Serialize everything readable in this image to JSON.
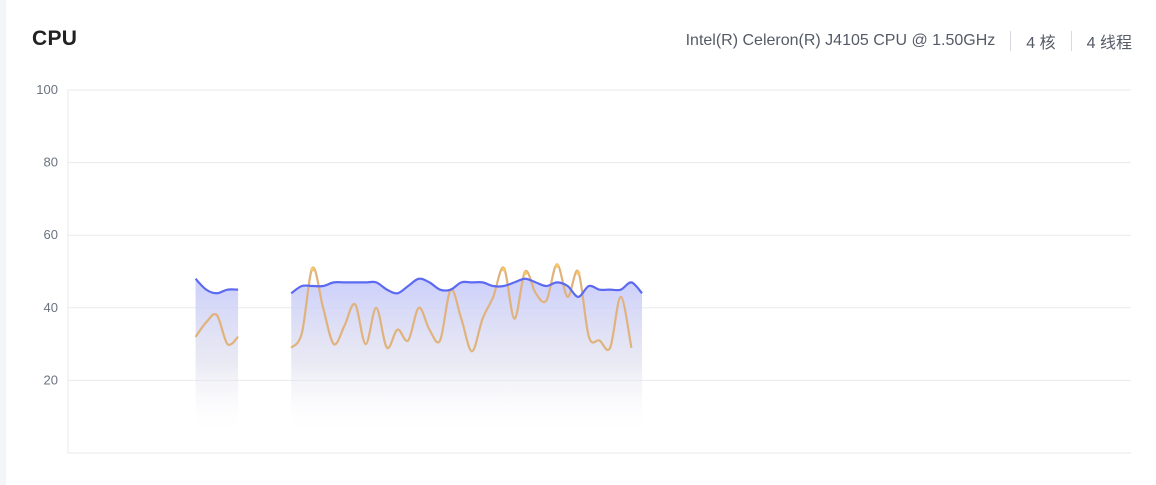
{
  "header": {
    "title": "CPU",
    "model": "Intel(R) Celeron(R) J4105 CPU @ 1.50GHz",
    "cores": "4 核",
    "threads": "4 线程"
  },
  "colors": {
    "series_total": "#5b6af0",
    "series_other": "#e0b27c",
    "series_other_peak": "#f8c66a",
    "grid": "#e8eaee"
  },
  "chart_data": {
    "type": "area",
    "ylim": [
      0,
      100
    ],
    "y_ticks": [
      20,
      40,
      60,
      80,
      100
    ],
    "grid": true,
    "x": [
      0,
      1,
      2,
      3,
      4,
      5,
      6,
      7,
      8,
      9,
      10,
      11,
      12,
      13,
      14,
      15,
      16,
      17,
      18,
      19,
      20,
      21,
      22,
      23,
      24,
      25,
      26,
      27,
      28,
      29,
      30,
      31,
      32,
      33,
      34,
      35,
      36,
      37,
      38,
      39,
      40,
      41,
      42,
      43,
      44,
      45,
      46,
      47,
      48,
      49,
      50,
      51,
      52,
      53,
      54,
      55,
      56,
      57,
      58,
      59,
      60,
      61,
      62,
      63,
      64,
      65,
      66,
      67,
      68,
      69,
      70,
      71,
      72,
      73,
      74,
      75,
      76,
      77,
      78,
      79,
      80,
      81,
      82,
      83,
      84,
      85,
      86,
      87,
      88,
      89,
      90,
      91,
      92,
      93,
      94,
      95,
      96,
      97,
      98,
      99,
      100
    ],
    "series": [
      {
        "values": [
          null,
          null,
          null,
          null,
          null,
          null,
          null,
          null,
          null,
          null,
          null,
          null,
          48,
          45,
          44,
          45,
          45,
          null,
          null,
          null,
          null,
          44,
          46,
          46,
          46,
          47,
          47,
          47,
          47,
          47,
          45,
          44,
          46,
          48,
          47,
          45,
          45,
          47,
          47,
          47,
          46,
          46,
          47,
          48,
          47,
          46,
          47,
          46,
          43,
          46,
          45,
          45,
          45,
          47,
          44,
          null,
          null,
          null,
          null,
          null,
          null,
          null,
          null,
          null,
          null,
          null,
          null,
          null,
          null,
          null,
          null,
          null,
          null,
          null,
          null,
          null,
          null,
          null,
          null,
          null,
          null,
          null,
          null,
          null,
          null,
          null,
          null,
          null,
          null,
          null,
          null,
          null,
          null,
          null,
          null,
          null,
          null,
          null,
          null,
          null,
          null
        ]
      },
      {
        "values": [
          null,
          null,
          null,
          null,
          null,
          null,
          null,
          null,
          null,
          null,
          null,
          null,
          32,
          36,
          38,
          30,
          32,
          null,
          null,
          null,
          null,
          29,
          33,
          51,
          40,
          30,
          35,
          41,
          30,
          40,
          29,
          34,
          31,
          40,
          34,
          31,
          45,
          37,
          28,
          37,
          43,
          51,
          37,
          50,
          44,
          42,
          52,
          43,
          50,
          32,
          31,
          29,
          43,
          29,
          null,
          null,
          null,
          null,
          null,
          null,
          null,
          null,
          null,
          null,
          null,
          null,
          null,
          null,
          null,
          null,
          null,
          null,
          null,
          null,
          null,
          null,
          null,
          null,
          null,
          null,
          null,
          null,
          null,
          null,
          null,
          null,
          null,
          null,
          null,
          null,
          null,
          null,
          null,
          null,
          null,
          null,
          null,
          null,
          null,
          null,
          null
        ]
      }
    ]
  }
}
